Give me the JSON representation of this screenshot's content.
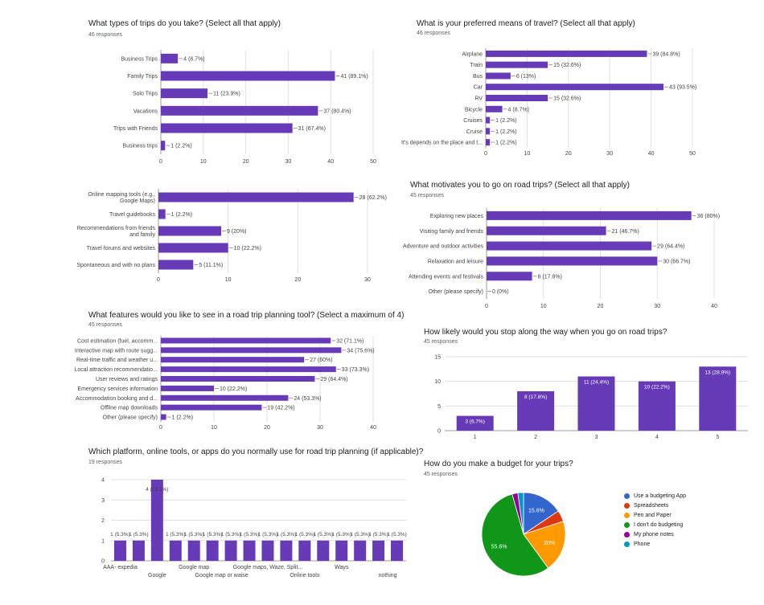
{
  "colors": {
    "bar": "#673ab7",
    "grid": "#e0e0e0",
    "axis": "#9e9e9e",
    "text": "#444444"
  },
  "panels": {
    "trips": {
      "title": "What types of trips do you take? (Select all that apply)",
      "responses": "46 responses"
    },
    "travel": {
      "title": "What is your preferred means of travel? (Select all that apply)",
      "responses": "46 responses"
    },
    "motivate": {
      "title": "What motivates you to go on road trips? (Select all that apply)",
      "responses": "45 responses"
    },
    "features": {
      "title": "What features would you like to see in a road trip planning tool? (Select a maximum of 4)",
      "responses": "45 responses"
    },
    "likely": {
      "title": "How likely would you stop along the way when you go on road trips?",
      "responses": "45 responses"
    },
    "platform": {
      "title": "Which platform, online tools, or apps do you normally use for road trip planning (if applicable)?",
      "responses": "19 responses"
    },
    "budget": {
      "title": "How do you make a budget for your trips?",
      "responses": "45 responses"
    }
  },
  "chart_data": [
    {
      "id": "trips",
      "type": "bar",
      "orientation": "horizontal",
      "categories": [
        "Business Trips",
        "Family Trips",
        "Solo Trips",
        "Vacations",
        "Trips with Friends",
        "Business trips"
      ],
      "values": [
        4,
        41,
        11,
        37,
        31,
        1
      ],
      "labels": [
        "4 (8.7%)",
        "41 (89.1%)",
        "11 (23.9%)",
        "37 (80.4%)",
        "31 (67.4%)",
        "1 (2.2%)"
      ],
      "xlim": [
        0,
        50
      ],
      "ticks": [
        "0",
        "10",
        "20",
        "30",
        "40",
        "50"
      ]
    },
    {
      "id": "travel",
      "type": "bar",
      "orientation": "horizontal",
      "categories": [
        "Airplane",
        "Train",
        "Bus",
        "Car",
        "RV",
        "Bicycle",
        "Cruises",
        "Cruise",
        "It's depends on the place and t..."
      ],
      "values": [
        39,
        15,
        6,
        43,
        15,
        4,
        1,
        1,
        1
      ],
      "labels": [
        "39 (84.8%)",
        "15 (32.6%)",
        "6 (13%)",
        "43 (93.5%)",
        "15 (32.6%)",
        "4 (8.7%)",
        "1 (2.2%)",
        "1 (2.2%)",
        "1 (2.2%)"
      ],
      "xlim": [
        0,
        50
      ],
      "ticks": [
        "0",
        "10",
        "20",
        "30",
        "40",
        "50"
      ]
    },
    {
      "id": "resources",
      "type": "bar",
      "orientation": "horizontal",
      "categories": [
        [
          "Online mapping tools (e.g.,",
          "Google Maps)"
        ],
        [
          "Travel guidebooks"
        ],
        [
          "Recommendations from friends",
          "and family"
        ],
        [
          "Travel forums and websites"
        ],
        [
          "Spontaneous and with no plans"
        ]
      ],
      "values": [
        28,
        1,
        9,
        10,
        5
      ],
      "labels": [
        "28 (62.2%)",
        "1 (2.2%)",
        "9 (20%)",
        "10 (22.2%)",
        "5 (11.1%)"
      ],
      "xlim": [
        0,
        30
      ],
      "ticks": [
        "0",
        "10",
        "20",
        "30"
      ]
    },
    {
      "id": "motivate",
      "type": "bar",
      "orientation": "horizontal",
      "categories": [
        "Exploring new places",
        "Visiting family and friends",
        "Adventure and outdoor activities",
        "Relaxation and leisure",
        "Attending events and festivals",
        "Other (please specify)"
      ],
      "values": [
        36,
        21,
        29,
        30,
        8,
        0
      ],
      "labels": [
        "36 (80%)",
        "21 (46.7%)",
        "29 (64.4%)",
        "30 (66.7%)",
        "8 (17.8%)",
        "0 (0%)"
      ],
      "xlim": [
        0,
        40
      ],
      "ticks": [
        "0",
        "10",
        "20",
        "30",
        "40"
      ]
    },
    {
      "id": "features",
      "type": "bar",
      "orientation": "horizontal",
      "categories": [
        "Cost estimation (fuel, accomm...",
        "Interactive map with route sugg...",
        "Real-time traffic and weather u...",
        "Local attraction recommendatio...",
        "User reviews and ratings",
        "Emergency services information",
        "Accommodation booking and d...",
        "Offline map downloads",
        "Other (please specify)"
      ],
      "values": [
        32,
        34,
        27,
        33,
        29,
        10,
        24,
        19,
        1
      ],
      "labels": [
        "32 (71.1%)",
        "34 (75.6%)",
        "27 (60%)",
        "33 (73.3%)",
        "29 (64.4%)",
        "10 (22.2%)",
        "24 (53.3%)",
        "19 (42.2%)",
        "1 (2.2%)"
      ],
      "xlim": [
        0,
        40
      ],
      "ticks": [
        "0",
        "10",
        "20",
        "30",
        "40"
      ]
    },
    {
      "id": "likely",
      "type": "bar",
      "orientation": "vertical",
      "categories": [
        "1",
        "2",
        "3",
        "4",
        "5"
      ],
      "values": [
        3,
        8,
        11,
        10,
        13
      ],
      "labels": [
        "3 (6.7%)",
        "8 (17.8%)",
        "11 (24.4%)",
        "10 (22.2%)",
        "13 (28.9%)"
      ],
      "ylim": [
        0,
        15
      ],
      "ticks": [
        "0",
        "5",
        "10",
        "15"
      ]
    },
    {
      "id": "platform",
      "type": "bar",
      "orientation": "vertical",
      "values": [
        1,
        1,
        4,
        1,
        1,
        1,
        1,
        1,
        1,
        1,
        1,
        1,
        1,
        1,
        1,
        1
      ],
      "labels": [
        "1 (5.3%)",
        "1 (5.3%)",
        "4 (21.1%)",
        "1 (5.3%)",
        "1 (5.3%)",
        "1 (5.3%)",
        "1 (5.3%)",
        "1 (5.3%)",
        "1 (5.3%)",
        "1 (5.3%)",
        "1 (5.3%)",
        "1 (5.3%)",
        "1 (5.3%)",
        "1 (5.3%)",
        "1 (5.3%)",
        "1 (5.3%)"
      ],
      "category_labels": [
        {
          "index": 0,
          "text": "AAA- expedia",
          "row": 0
        },
        {
          "index": 2,
          "text": "Google",
          "row": 1
        },
        {
          "index": 4,
          "text": "Google map",
          "row": 0
        },
        {
          "index": 5.5,
          "text": "Google map or waise",
          "row": 1
        },
        {
          "index": 8,
          "text": "Google maps, Waze, Split...",
          "row": 0
        },
        {
          "index": 10,
          "text": "Online tools",
          "row": 1
        },
        {
          "index": 12,
          "text": "Ways",
          "row": 0
        },
        {
          "index": 14.5,
          "text": "nothing",
          "row": 1
        }
      ],
      "ylim": [
        0,
        4
      ],
      "ticks": [
        "0",
        "1",
        "2",
        "3",
        "4"
      ]
    },
    {
      "id": "budget",
      "type": "pie",
      "slices": [
        {
          "label": "Use a budgeting App",
          "value": 15.6,
          "color": "#3366cc",
          "text": "15.6%"
        },
        {
          "label": "Spreadsheets",
          "value": 4.4,
          "color": "#dc3912",
          "text": ""
        },
        {
          "label": "Pen and Paper",
          "value": 20.0,
          "color": "#ff9900",
          "text": "20%"
        },
        {
          "label": "I don't do budgeting",
          "value": 55.6,
          "color": "#109618",
          "text": "55.6%"
        },
        {
          "label": "My phone notes",
          "value": 2.2,
          "color": "#990099",
          "text": ""
        },
        {
          "label": "Phone",
          "value": 2.2,
          "color": "#0099c6",
          "text": ""
        }
      ]
    }
  ]
}
